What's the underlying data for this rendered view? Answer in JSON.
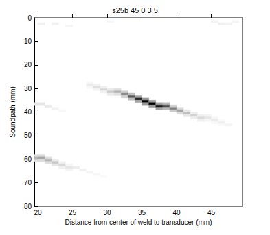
{
  "chart_data": {
    "type": "heatmap",
    "title": "s25b 45 0 3 5",
    "x_label": "Distance from center of weld to transducer (mm)",
    "y_label": "Soundpath (mm)",
    "xlim": [
      19.5,
      49.5
    ],
    "xticks": [
      20,
      25,
      30,
      35,
      40,
      45
    ],
    "ylim": [
      0,
      80
    ],
    "yticks": [
      0,
      10,
      20,
      30,
      40,
      50,
      60,
      70,
      80
    ],
    "grid": false,
    "cell_width": 1,
    "cell_height": 1,
    "color_range": [
      0,
      1
    ],
    "cell_colors": [
      "#ffffff",
      "#000000"
    ],
    "cells": [
      [
        27,
        27,
        0.03
      ],
      [
        27,
        28,
        0.08
      ],
      [
        27,
        29,
        0.03
      ],
      [
        28,
        28,
        0.05
      ],
      [
        28,
        29,
        0.12
      ],
      [
        28,
        30,
        0.05
      ],
      [
        29,
        29,
        0.06
      ],
      [
        29,
        30,
        0.15
      ],
      [
        29,
        31,
        0.06
      ],
      [
        30,
        30,
        0.08
      ],
      [
        30,
        31,
        0.2
      ],
      [
        30,
        32,
        0.08
      ],
      [
        31,
        30,
        0.12
      ],
      [
        31,
        31,
        0.3
      ],
      [
        31,
        32,
        0.12
      ],
      [
        32,
        31,
        0.18
      ],
      [
        32,
        32,
        0.45
      ],
      [
        32,
        33,
        0.18
      ],
      [
        33,
        32,
        0.26
      ],
      [
        33,
        33,
        0.65
      ],
      [
        33,
        34,
        0.26
      ],
      [
        34,
        33,
        0.34
      ],
      [
        34,
        34,
        0.85
      ],
      [
        34,
        35,
        0.34
      ],
      [
        35,
        34,
        0.4
      ],
      [
        35,
        35,
        1.0
      ],
      [
        35,
        36,
        0.4
      ],
      [
        36,
        35,
        0.4
      ],
      [
        36,
        36,
        1.0
      ],
      [
        36,
        37,
        0.4
      ],
      [
        37,
        36,
        0.36
      ],
      [
        37,
        37,
        0.9
      ],
      [
        37,
        38,
        0.36
      ],
      [
        38,
        36,
        0.28
      ],
      [
        38,
        37,
        0.7
      ],
      [
        38,
        38,
        0.28
      ],
      [
        39,
        37,
        0.2
      ],
      [
        39,
        38,
        0.5
      ],
      [
        39,
        39,
        0.2
      ],
      [
        40,
        38,
        0.14
      ],
      [
        40,
        39,
        0.35
      ],
      [
        40,
        40,
        0.14
      ],
      [
        41,
        39,
        0.1
      ],
      [
        41,
        40,
        0.25
      ],
      [
        41,
        41,
        0.1
      ],
      [
        42,
        40,
        0.07
      ],
      [
        42,
        41,
        0.18
      ],
      [
        42,
        42,
        0.07
      ],
      [
        43,
        41,
        0.06
      ],
      [
        43,
        42,
        0.14
      ],
      [
        43,
        43,
        0.06
      ],
      [
        44,
        41,
        0.04
      ],
      [
        44,
        42,
        0.1
      ],
      [
        44,
        43,
        0.04
      ],
      [
        45,
        42,
        0.03
      ],
      [
        45,
        43,
        0.08
      ],
      [
        45,
        44,
        0.03
      ],
      [
        46,
        43,
        0.02
      ],
      [
        46,
        44,
        0.06
      ],
      [
        46,
        45,
        0.02
      ],
      [
        47,
        45,
        0.04
      ],
      [
        19,
        58,
        0.12
      ],
      [
        19,
        59,
        0.3
      ],
      [
        19,
        60,
        0.12
      ],
      [
        20,
        58,
        0.14
      ],
      [
        20,
        59,
        0.35
      ],
      [
        20,
        60,
        0.14
      ],
      [
        21,
        59,
        0.12
      ],
      [
        21,
        60,
        0.3
      ],
      [
        21,
        61,
        0.12
      ],
      [
        22,
        60,
        0.09
      ],
      [
        22,
        61,
        0.22
      ],
      [
        22,
        62,
        0.09
      ],
      [
        23,
        61,
        0.06
      ],
      [
        23,
        62,
        0.15
      ],
      [
        23,
        63,
        0.06
      ],
      [
        24,
        62,
        0.04
      ],
      [
        24,
        63,
        0.1
      ],
      [
        24,
        64,
        0.04
      ],
      [
        25,
        63,
        0.07
      ],
      [
        26,
        64,
        0.05
      ],
      [
        27,
        65,
        0.04
      ],
      [
        28,
        66,
        0.03
      ],
      [
        29,
        67,
        0.02
      ],
      [
        19,
        36,
        0.1
      ],
      [
        20,
        36,
        0.1
      ],
      [
        21,
        37,
        0.08
      ],
      [
        22,
        38,
        0.05
      ],
      [
        23,
        39,
        0.03
      ],
      [
        20,
        2,
        0.06
      ],
      [
        22,
        2,
        0.05
      ],
      [
        24,
        3,
        0.04
      ],
      [
        30,
        1,
        0.03
      ],
      [
        45,
        1,
        0.05
      ],
      [
        46,
        2,
        0.06
      ],
      [
        47,
        2,
        0.05
      ],
      [
        48,
        1,
        0.04
      ]
    ]
  }
}
